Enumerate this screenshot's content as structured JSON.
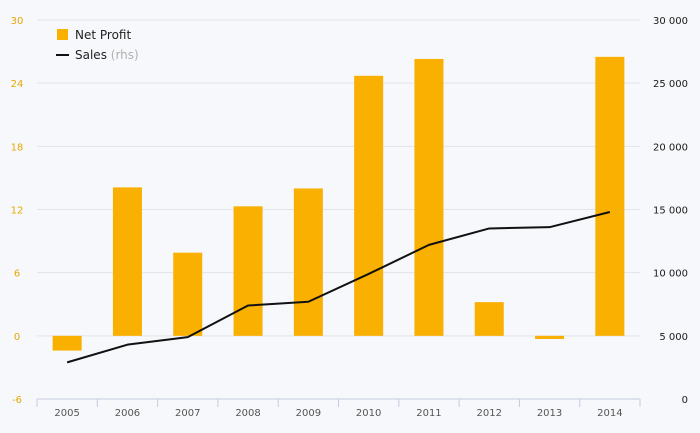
{
  "chart_data": {
    "type": "bar+line",
    "title": "",
    "categories": [
      "2005",
      "2006",
      "2007",
      "2008",
      "2009",
      "2010",
      "2011",
      "2012",
      "2013",
      "2014"
    ],
    "series": [
      {
        "name": "Net Profit",
        "type": "bar",
        "axis": "left",
        "color": "#f9b000",
        "values": [
          -1.4,
          14.1,
          7.9,
          12.3,
          14.0,
          24.7,
          26.3,
          3.2,
          -0.3,
          26.5
        ]
      },
      {
        "name": "Sales",
        "note": "(rhs)",
        "type": "line",
        "axis": "right",
        "color": "#111111",
        "values": [
          2900,
          4300,
          4900,
          7400,
          7700,
          9900,
          12200,
          13500,
          13600,
          14800
        ]
      }
    ],
    "y_left": {
      "range": [
        -6,
        30
      ],
      "ticks": [
        "-6",
        "0",
        "6",
        "12",
        "18",
        "24",
        "30"
      ],
      "tick_values": [
        -6,
        0,
        6,
        12,
        18,
        24,
        30
      ],
      "color": "#e6a800"
    },
    "y_right": {
      "range": [
        0,
        30000
      ],
      "ticks": [
        "0",
        "5 000",
        "10 000",
        "15 000",
        "20 000",
        "25 000",
        "30 000"
      ],
      "tick_values": [
        0,
        5000,
        10000,
        15000,
        20000,
        25000,
        30000
      ]
    },
    "grid": true,
    "legend": {
      "position": "top-left"
    }
  }
}
